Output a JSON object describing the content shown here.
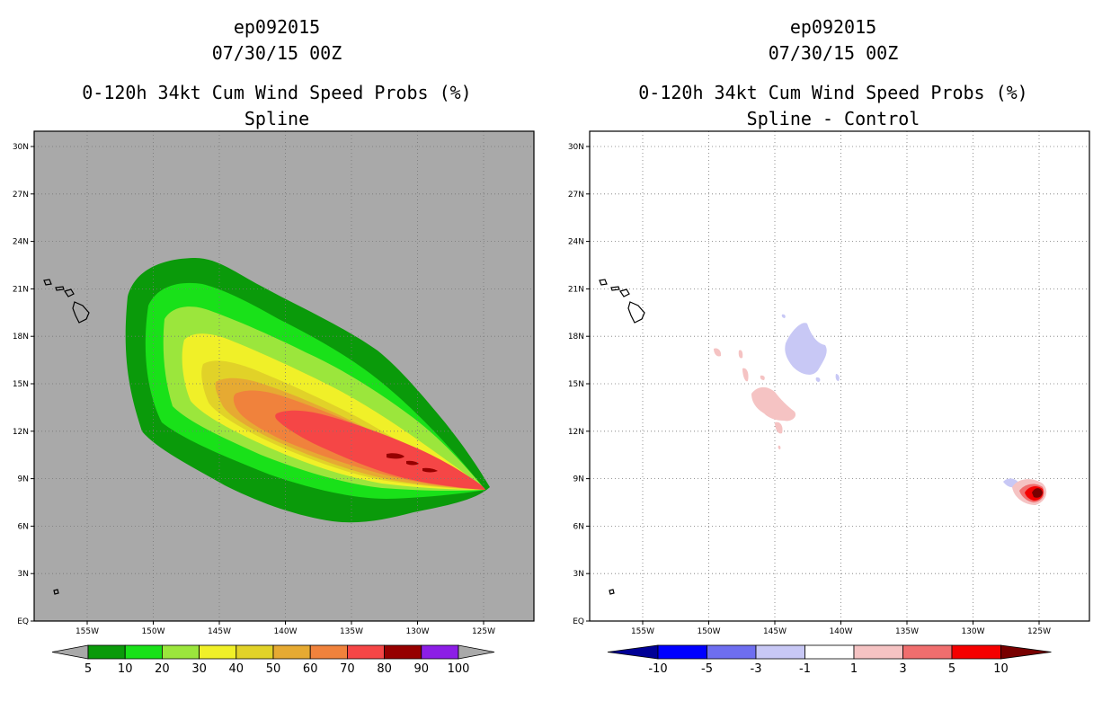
{
  "left_panel": {
    "storm_id": "ep092015",
    "datetime": "07/30/15 00Z",
    "product": "0-120h 34kt Cum Wind Speed Probs (%)",
    "subtitle": "Spline",
    "background_color": "#a9a9a9",
    "colorbar": {
      "labels": [
        "5",
        "10",
        "20",
        "30",
        "40",
        "50",
        "60",
        "70",
        "80",
        "90",
        "100"
      ],
      "colors": [
        "#0a9a0a",
        "#19e119",
        "#9be63c",
        "#f0f028",
        "#e1d228",
        "#e6aa32",
        "#f0823c",
        "#f54646",
        "#960000",
        "#8c1ee6"
      ],
      "end_colors": [
        "#a9a9a9",
        "#a9a9a9"
      ]
    }
  },
  "right_panel": {
    "storm_id": "ep092015",
    "datetime": "07/30/15 00Z",
    "product": "0-120h 34kt Cum Wind Speed Probs (%)",
    "subtitle": "Spline - Control",
    "background_color": "#ffffff",
    "colorbar": {
      "labels": [
        "-10",
        "-5",
        "-3",
        "-1",
        "1",
        "3",
        "5",
        "10"
      ],
      "colors": [
        "#0000ff",
        "#6e6ef0",
        "#c8c8f5",
        "#ffffff",
        "#f5c3c3",
        "#f06e6e",
        "#f50000"
      ],
      "end_colors": [
        "#000096",
        "#780000"
      ]
    }
  },
  "map": {
    "lat_labels": [
      "EQ",
      "3N",
      "6N",
      "9N",
      "12N",
      "15N",
      "18N",
      "21N",
      "24N",
      "27N",
      "30N"
    ],
    "lon_labels": [
      "155W",
      "150W",
      "145W",
      "140W",
      "135W",
      "130W",
      "125W"
    ]
  }
}
